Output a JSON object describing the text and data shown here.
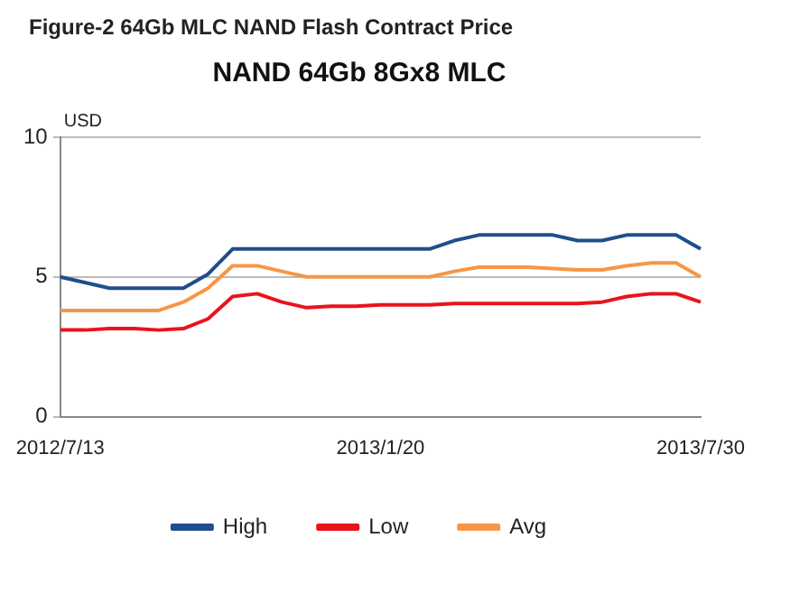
{
  "chart_data": {
    "type": "line",
    "title": "NAND 64Gb 8Gx8 MLC",
    "subtitle": "Figure-2 64Gb MLC NAND Flash Contract Price",
    "ylabel": "USD",
    "categories": [
      "2012/7/13",
      null,
      null,
      null,
      null,
      null,
      null,
      null,
      null,
      null,
      null,
      null,
      null,
      "2013/1/20",
      null,
      null,
      null,
      null,
      null,
      null,
      null,
      null,
      null,
      null,
      null,
      null,
      "2013/7/30"
    ],
    "series": [
      {
        "name": "High",
        "color": "#1f4e8c",
        "values": [
          5.0,
          4.8,
          4.6,
          4.6,
          4.6,
          4.6,
          5.1,
          6.0,
          6.0,
          6.0,
          6.0,
          6.0,
          6.0,
          6.0,
          6.0,
          6.0,
          6.3,
          6.5,
          6.5,
          6.5,
          6.5,
          6.3,
          6.3,
          6.5,
          6.5,
          6.5,
          6.0
        ]
      },
      {
        "name": "Low",
        "color": "#e8141c",
        "values": [
          3.1,
          3.1,
          3.15,
          3.15,
          3.1,
          3.15,
          3.5,
          4.3,
          4.4,
          4.1,
          3.9,
          3.95,
          3.95,
          4.0,
          4.0,
          4.0,
          4.05,
          4.05,
          4.05,
          4.05,
          4.05,
          4.05,
          4.1,
          4.3,
          4.4,
          4.4,
          4.1
        ]
      },
      {
        "name": "Avg",
        "color": "#f79646",
        "values": [
          3.8,
          3.8,
          3.8,
          3.8,
          3.8,
          4.1,
          4.6,
          5.4,
          5.4,
          5.2,
          5.0,
          5.0,
          5.0,
          5.0,
          5.0,
          5.0,
          5.2,
          5.35,
          5.35,
          5.35,
          5.3,
          5.25,
          5.25,
          5.4,
          5.5,
          5.5,
          5.0
        ]
      }
    ],
    "ylim": [
      0,
      10
    ],
    "yticks": [
      0,
      5,
      10
    ],
    "grid": "y",
    "legend": "bottom",
    "marker": "none",
    "line_style": "solid"
  }
}
